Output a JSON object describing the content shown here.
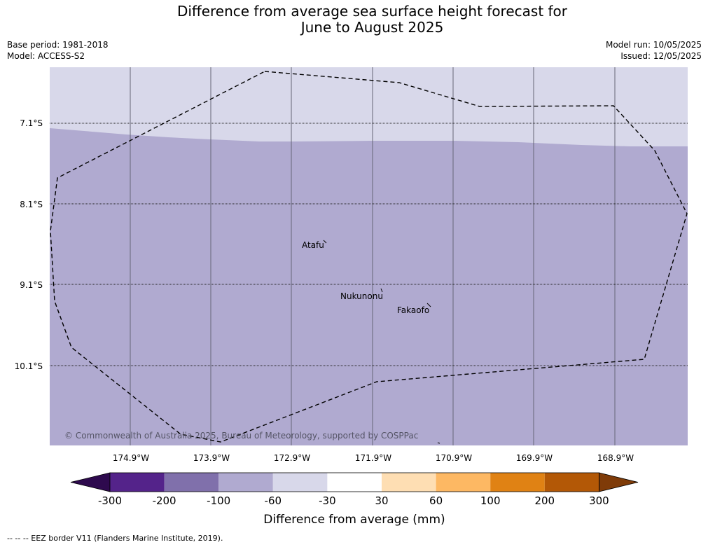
{
  "title_line1": "Difference from average sea surface height forecast for",
  "title_line2": "June to August 2025",
  "meta_left": {
    "base_period": "Base period: 1981-2018",
    "model": "Model: ACCESS-S2"
  },
  "meta_right": {
    "model_run": "Model run: 10/05/2025",
    "issued": "Issued: 12/05/2025"
  },
  "map": {
    "lat_labels": [
      "7.1°S",
      "8.1°S",
      "9.1°S",
      "10.1°S"
    ],
    "lon_labels": [
      "174.9°W",
      "173.9°W",
      "172.9°W",
      "171.9°W",
      "170.9°W",
      "169.9°W",
      "168.9°W"
    ],
    "places": [
      "Atafu",
      "Nukunonu",
      "Fakaofo"
    ],
    "copyright": "© Commonwealth of Australia 2025, Bureau of Meteorology, supported by COSPPac",
    "fill_colors": {
      "light_band": "#d8d8ea",
      "main": "#b0aad0"
    }
  },
  "colorbar": {
    "ticks": [
      "-300",
      "-200",
      "-100",
      "-60",
      "-30",
      "30",
      "60",
      "100",
      "200",
      "300"
    ],
    "colors": [
      "#2e0a4e",
      "#54238a",
      "#8070ab",
      "#b0aad0",
      "#d8d8ea",
      "#ffffff",
      "#fedeb3",
      "#fdb863",
      "#e08214",
      "#b35806",
      "#7f3b08"
    ],
    "label": "Difference from average (mm)"
  },
  "footer": "--  --  -- EEZ border V11 (Flanders Marine Institute, 2019)."
}
